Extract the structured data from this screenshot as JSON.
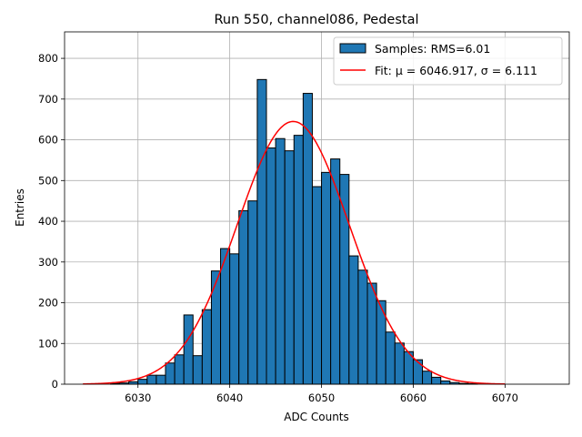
{
  "chart_data": {
    "type": "bar",
    "title": "Run 550, channel086, Pedestal",
    "xlabel": "ADC Counts",
    "ylabel": "Entries",
    "xlim": [
      6022,
      6077
    ],
    "ylim": [
      0,
      865
    ],
    "x_ticks": [
      6030,
      6040,
      6050,
      6060,
      6070
    ],
    "y_ticks": [
      0,
      100,
      200,
      300,
      400,
      500,
      600,
      700,
      800
    ],
    "grid": true,
    "legend_position": "top-right",
    "bin_width": 1,
    "bins": [
      [
        6027,
        2
      ],
      [
        6028,
        3
      ],
      [
        6029,
        6
      ],
      [
        6030,
        12
      ],
      [
        6031,
        22
      ],
      [
        6032,
        22
      ],
      [
        6033,
        52
      ],
      [
        6034,
        72
      ],
      [
        6035,
        170
      ],
      [
        6036,
        70
      ],
      [
        6037,
        183
      ],
      [
        6038,
        278
      ],
      [
        6039,
        333
      ],
      [
        6040,
        320
      ],
      [
        6041,
        426
      ],
      [
        6042,
        450
      ],
      [
        6043,
        748
      ],
      [
        6044,
        580
      ],
      [
        6045,
        603
      ],
      [
        6046,
        573
      ],
      [
        6047,
        611
      ],
      [
        6048,
        714
      ],
      [
        6049,
        485
      ],
      [
        6050,
        520
      ],
      [
        6051,
        553
      ],
      [
        6052,
        515
      ],
      [
        6053,
        315
      ],
      [
        6054,
        280
      ],
      [
        6055,
        248
      ],
      [
        6056,
        205
      ],
      [
        6057,
        128
      ],
      [
        6058,
        101
      ],
      [
        6059,
        80
      ],
      [
        6060,
        60
      ],
      [
        6061,
        32
      ],
      [
        6062,
        17
      ],
      [
        6063,
        8
      ],
      [
        6064,
        4
      ],
      [
        6065,
        2
      ],
      [
        6066,
        1
      ]
    ],
    "fit": {
      "mu": 6046.917,
      "sigma": 6.111,
      "amplitude": 645,
      "x_range": [
        6024,
        6070
      ]
    },
    "series": [
      {
        "name": "Samples: RMS=6.01",
        "kind": "histogram",
        "color": "#1f77b4"
      },
      {
        "name": "Fit: μ = 6046.917, σ = 6.111",
        "kind": "line",
        "color": "#ff0000"
      }
    ]
  }
}
